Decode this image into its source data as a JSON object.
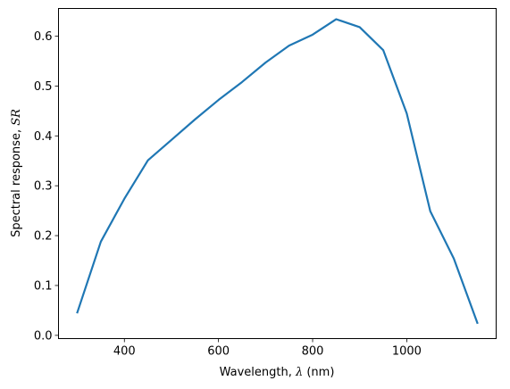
{
  "chart_data": {
    "type": "line",
    "xlabel": "Wavelength, λ (nm)",
    "ylabel": "Spectral response, SR",
    "xlabel_parts": {
      "pre": "Wavelength, ",
      "math": "λ",
      "post": " (nm)"
    },
    "ylabel_parts": {
      "pre": "Spectral response, ",
      "math": "SR",
      "post": ""
    },
    "xlim": [
      260,
      1190
    ],
    "ylim": [
      -0.0065,
      0.6555
    ],
    "x_ticks": [
      400,
      600,
      800,
      1000
    ],
    "y_ticks": [
      0.0,
      0.1,
      0.2,
      0.3,
      0.4,
      0.5,
      0.6
    ],
    "x_tick_labels": [
      "400",
      "600",
      "800",
      "1000"
    ],
    "y_tick_labels": [
      "0.0",
      "0.1",
      "0.2",
      "0.3",
      "0.4",
      "0.5",
      "0.6"
    ],
    "grid": false,
    "series": [
      {
        "color": "#1f77b4",
        "x": [
          300,
          350,
          400,
          450,
          500,
          550,
          600,
          650,
          700,
          750,
          800,
          850,
          900,
          950,
          1000,
          1050,
          1100,
          1150
        ],
        "y": [
          0.046,
          0.188,
          0.274,
          0.351,
          0.392,
          0.433,
          0.472,
          0.508,
          0.547,
          0.581,
          0.603,
          0.634,
          0.618,
          0.572,
          0.445,
          0.249,
          0.154,
          0.025
        ]
      }
    ]
  }
}
